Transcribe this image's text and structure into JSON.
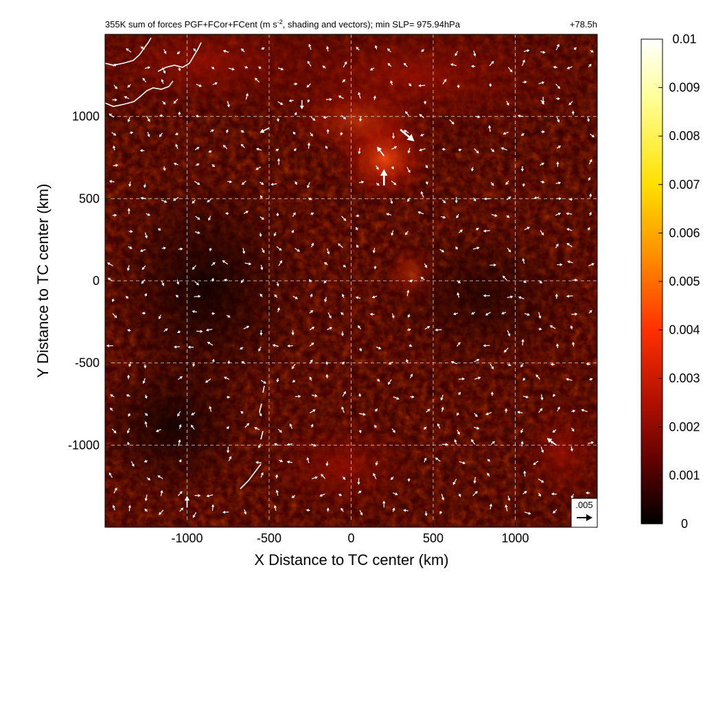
{
  "chart_data": {
    "type": "heatmap",
    "title": "355K sum of forces PGF+FCor+FCent (m s",
    "title_sup": "-2",
    "title_rest": ", shading and vectors); min SLP= 975.94hPa",
    "time_label": "+78.5h",
    "xlabel": "X Distance to TC center (km)",
    "ylabel": "Y Distance to TC center (km)",
    "xlim": [
      -1500,
      1500
    ],
    "ylim": [
      -1500,
      1500
    ],
    "xticks": [
      -1000,
      -500,
      0,
      500,
      1000
    ],
    "yticks": [
      -1000,
      -500,
      0,
      500,
      1000
    ],
    "xtick_labels": [
      "-1000",
      "-500",
      "0",
      "500",
      "1000"
    ],
    "ytick_labels": [
      "-1000",
      "-500",
      "0",
      "500",
      "1000"
    ],
    "grid": true,
    "colorbar": {
      "min": 0,
      "max": 0.01,
      "ticks": [
        0,
        0.001,
        0.002,
        0.003,
        0.004,
        0.005,
        0.006,
        0.007,
        0.008,
        0.009,
        0.01
      ],
      "tick_labels": [
        "0",
        "0.001",
        "0.002",
        "0.003",
        "0.004",
        "0.005",
        "0.006",
        "0.007",
        "0.008",
        "0.009",
        "0.01"
      ],
      "colors": [
        "#000000",
        "#5a0000",
        "#b01000",
        "#ff3000",
        "#ff8c00",
        "#ffe000",
        "#ffff99",
        "#ffffff"
      ]
    },
    "reference_vector": {
      "label": ".005",
      "magnitude": 0.005
    },
    "vector_color": "#ffffff",
    "coastline_color": "#ffffff",
    "notable_vectors": [
      {
        "x": 300,
        "y": 920,
        "u": 0.006,
        "v": -0.005
      },
      {
        "x": 200,
        "y": 760,
        "u": -0.003,
        "v": 0.004
      },
      {
        "x": 200,
        "y": 580,
        "u": 0.0,
        "v": 0.007
      },
      {
        "x": -300,
        "y": 1100,
        "u": 0.0,
        "v": -0.004
      },
      {
        "x": -1000,
        "y": -1380,
        "u": 0.0,
        "v": 0.005
      },
      {
        "x": 1250,
        "y": -1000,
        "u": -0.004,
        "v": 0.003
      },
      {
        "x": -500,
        "y": 930,
        "u": -0.004,
        "v": -0.002
      },
      {
        "x": 600,
        "y": 980,
        "u": 0.002,
        "v": -0.002
      },
      {
        "x": 1170,
        "y": 1120,
        "u": 0.0,
        "v": -0.003
      },
      {
        "x": 200,
        "y": -1380,
        "u": 0.0,
        "v": 0.003
      }
    ]
  }
}
